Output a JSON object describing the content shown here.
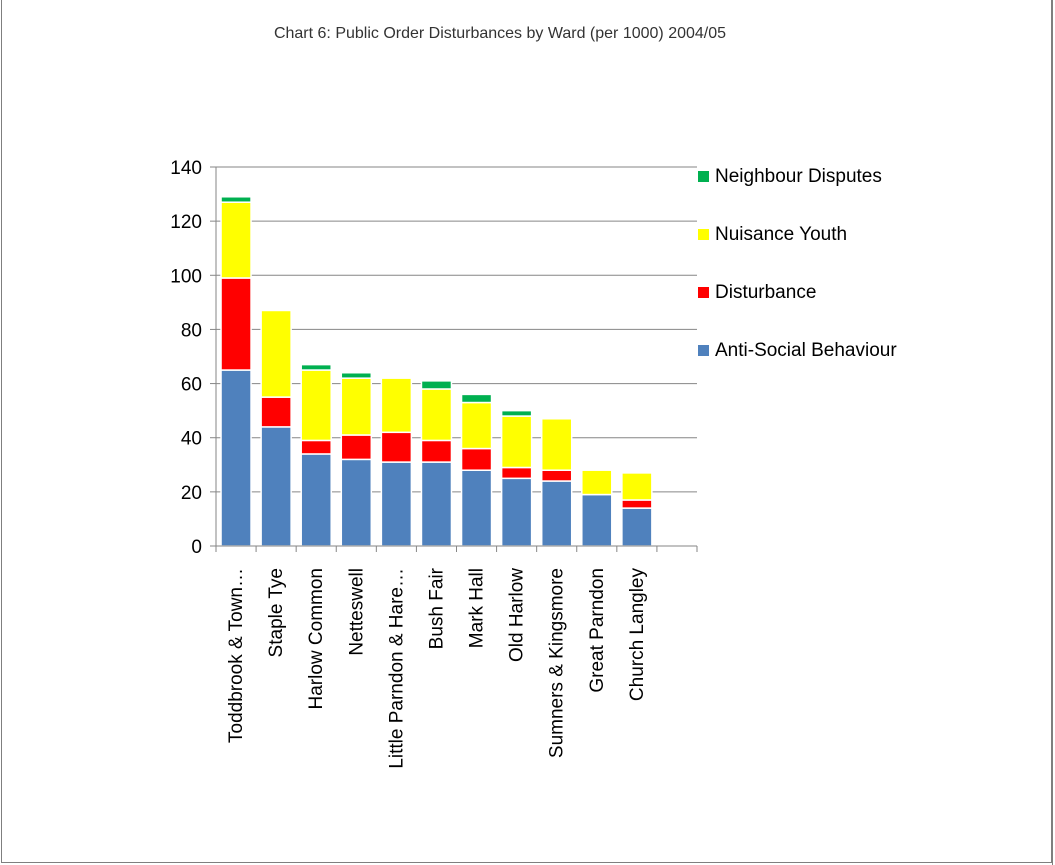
{
  "chart_data": {
    "type": "bar",
    "stacked": true,
    "title": "Chart 6: Public Order Disturbances by Ward (per 1000) 2004/05",
    "xlabel": "",
    "ylabel": "",
    "ylim": [
      0,
      140
    ],
    "yticks": [
      0,
      20,
      40,
      60,
      80,
      100,
      120,
      140
    ],
    "grid": true,
    "legend_position": "right",
    "categories": [
      "Toddbrook & Town…",
      "Staple Tye",
      "Harlow Common",
      "Netteswell",
      "Little Parndon & Hare…",
      "Bush Fair",
      "Mark Hall",
      "Old Harlow",
      "Sumners & Kingsmore",
      "Great Parndon",
      "Church Langley"
    ],
    "series": [
      {
        "name": "Anti-Social Behaviour",
        "color": "#4f81bd",
        "values": [
          65,
          44,
          34,
          32,
          31,
          31,
          28,
          25,
          24,
          19,
          14
        ]
      },
      {
        "name": "Disturbance",
        "color": "#ff0000",
        "values": [
          34,
          11,
          5,
          9,
          11,
          8,
          8,
          4,
          4,
          0,
          3
        ]
      },
      {
        "name": "Nuisance Youth",
        "color": "#ffff00",
        "values": [
          28,
          32,
          26,
          21,
          20,
          19,
          17,
          19,
          19,
          9,
          10
        ]
      },
      {
        "name": "Neighbour Disputes",
        "color": "#00b050",
        "values": [
          2,
          0,
          2,
          2,
          0,
          3,
          3,
          2,
          0,
          0,
          0
        ]
      }
    ]
  }
}
